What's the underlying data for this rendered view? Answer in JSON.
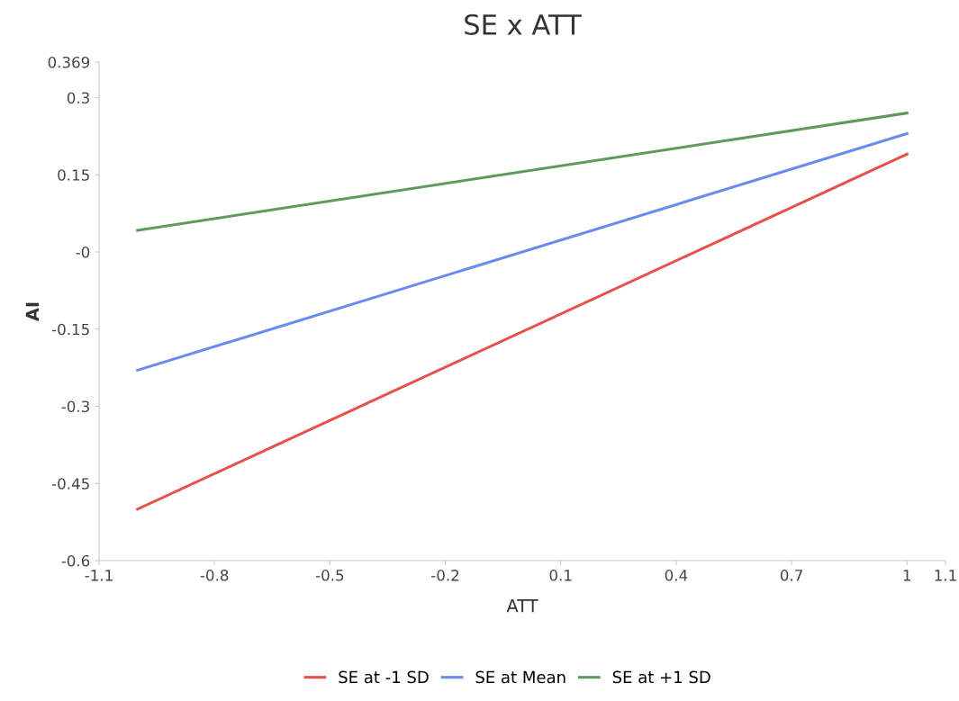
{
  "chart_data": {
    "type": "line",
    "title": "SE x ATT",
    "xlabel": "ATT",
    "ylabel": "AI",
    "x": [
      -1,
      1
    ],
    "series": [
      {
        "name": "SE at -1 SD",
        "color": "#e8504c",
        "values": [
          -0.5,
          0.19
        ]
      },
      {
        "name": "SE at Mean",
        "color": "#6d8af0",
        "values": [
          -0.23,
          0.23
        ]
      },
      {
        "name": "SE at +1 SD",
        "color": "#5f9a5c",
        "values": [
          0.042,
          0.27
        ]
      }
    ],
    "xlim": [
      -1.1,
      1.1
    ],
    "xticks": [
      -1.1,
      -0.8,
      -0.5,
      -0.2,
      0.1,
      0.4,
      0.7,
      1,
      1.1
    ],
    "ylim": [
      -0.6,
      0.369
    ],
    "yticks": [
      -0.6,
      -0.45,
      -0.3,
      -0.15,
      {
        "value": 0,
        "label": "-0"
      },
      0.15,
      0.3,
      0.369
    ],
    "grid": false,
    "legend": "bottom",
    "marker": "none",
    "line_style": "solid"
  }
}
